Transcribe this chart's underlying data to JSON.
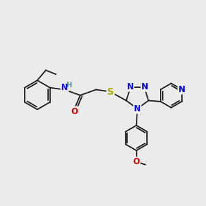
{
  "bg": "#ebebeb",
  "bond_color": "#1a1a1a",
  "bw": 1.3,
  "atom_colors": {
    "N": "#0000ee",
    "O": "#dd0000",
    "S": "#aaaa00",
    "H": "#4a8888",
    "C": "#1a1a1a"
  },
  "fs": 8.5,
  "dpi": 100
}
